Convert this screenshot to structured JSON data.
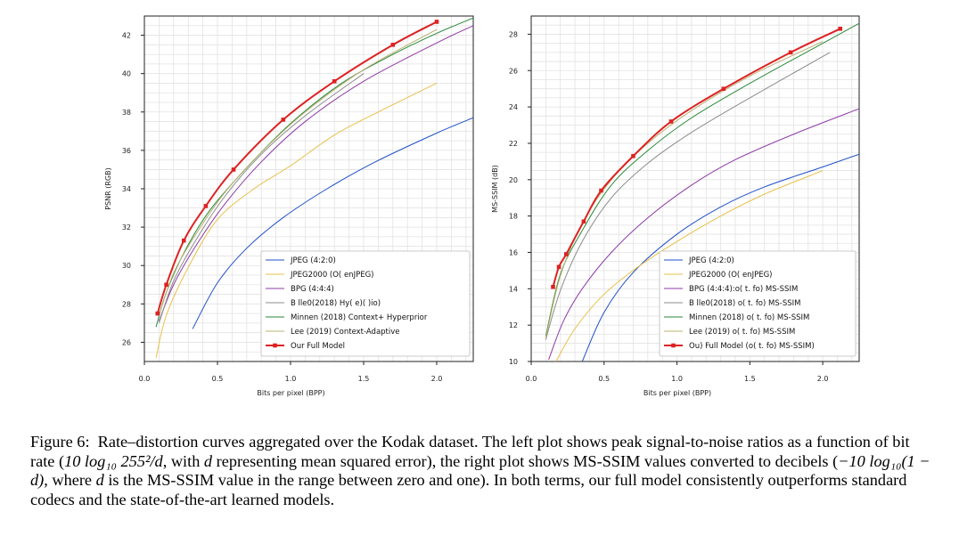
{
  "chart_data": [
    {
      "type": "line",
      "xlabel": "Bits per pixel (BPP)",
      "ylabel": "PSNR (RGB)",
      "xlim": [
        0.0,
        2.25
      ],
      "ylim": [
        25.0,
        43.0
      ],
      "xticks": [
        "0.0",
        "0.5",
        "1.0",
        "1.5",
        "2.0"
      ],
      "yticks": [
        "26",
        "28",
        "30",
        "32",
        "34",
        "36",
        "38",
        "40",
        "42"
      ],
      "grid": true,
      "legend_position": "lower-right",
      "series": [
        {
          "name": "JPEG (4:2:0)",
          "color": "#1f4fc8",
          "marker": false,
          "x": [
            0.33,
            0.5,
            0.7,
            0.95,
            1.25,
            1.58,
            2.0,
            2.25
          ],
          "y": [
            26.7,
            29.1,
            30.9,
            32.5,
            34.0,
            35.4,
            36.9,
            37.7
          ]
        },
        {
          "name": "JPEG2000 (O( enJPEG)",
          "color": "#e8c04a",
          "marker": false,
          "x": [
            0.08,
            0.15,
            0.3,
            0.5,
            0.75,
            1.0,
            1.3,
            1.6,
            2.0
          ],
          "y": [
            25.2,
            27.4,
            29.9,
            32.4,
            34.0,
            35.2,
            36.8,
            38.0,
            39.5
          ]
        },
        {
          "name": "BPG (4:4:4)",
          "color": "#8e3aa8",
          "marker": false,
          "x": [
            0.1,
            0.2,
            0.35,
            0.55,
            0.8,
            1.1,
            1.5,
            2.0,
            2.25
          ],
          "y": [
            27.1,
            29.0,
            31.0,
            33.2,
            35.4,
            37.5,
            39.6,
            41.6,
            42.5
          ]
        },
        {
          "name": "B  lle0(2018) Hy( e)( )io)",
          "color": "#8c8c8c",
          "marker": false,
          "x": [
            0.1,
            0.2,
            0.35,
            0.55,
            0.8,
            1.1,
            1.5
          ],
          "y": [
            27.0,
            29.2,
            31.3,
            33.6,
            35.8,
            37.8,
            40.0
          ]
        },
        {
          "name": "Minnen (2018) Context+ Hyperprior",
          "color": "#2a8a3a",
          "marker": false,
          "x": [
            0.08,
            0.15,
            0.28,
            0.45,
            0.7,
            1.0,
            1.35,
            1.7,
            2.0,
            2.25
          ],
          "y": [
            26.8,
            28.6,
            30.8,
            32.9,
            35.1,
            37.4,
            39.5,
            41.0,
            42.1,
            42.9
          ]
        },
        {
          "name": "Lee (2019) Context-Adaptive",
          "color": "#b8b070",
          "marker": false,
          "x": [
            0.1,
            0.2,
            0.35,
            0.55,
            0.8,
            1.1,
            1.5,
            2.0
          ],
          "y": [
            27.4,
            29.6,
            31.6,
            33.8,
            35.9,
            38.0,
            40.2,
            42.3
          ]
        },
        {
          "name": "Our Full Model",
          "color": "#dd2222",
          "marker": true,
          "x": [
            0.09,
            0.15,
            0.27,
            0.42,
            0.61,
            0.95,
            1.3,
            1.7,
            2.0
          ],
          "y": [
            27.5,
            29.0,
            31.3,
            33.1,
            35.0,
            37.6,
            39.6,
            41.5,
            42.7
          ]
        }
      ]
    },
    {
      "type": "line",
      "xlabel": "Bits per pixel (BPP)",
      "ylabel": "MS-SSIM (dB)",
      "xlim": [
        0.0,
        2.25
      ],
      "ylim": [
        10.0,
        29.0
      ],
      "xticks": [
        "0.0",
        "0.5",
        "1.0",
        "1.5",
        "2.0"
      ],
      "yticks": [
        "10",
        "12",
        "14",
        "16",
        "18",
        "20",
        "22",
        "24",
        "26",
        "28"
      ],
      "grid": true,
      "legend_position": "lower-right",
      "series": [
        {
          "name": "JPEG (4:2:0)",
          "color": "#1f4fc8",
          "marker": false,
          "x": [
            0.35,
            0.5,
            0.7,
            1.0,
            1.3,
            1.6,
            2.0,
            2.25
          ],
          "y": [
            10.0,
            12.7,
            14.9,
            17.0,
            18.5,
            19.6,
            20.7,
            21.4
          ]
        },
        {
          "name": "JPEG2000 (O( enJPEG)",
          "color": "#e8c04a",
          "marker": false,
          "x": [
            0.17,
            0.3,
            0.5,
            0.75,
            1.0,
            1.3,
            1.6,
            2.0
          ],
          "y": [
            10.0,
            11.8,
            13.7,
            15.3,
            16.6,
            18.0,
            19.2,
            20.5
          ]
        },
        {
          "name": "BPG (4:4:4):o( t. fo) MS-SSIM",
          "color": "#8e3aa8",
          "marker": false,
          "x": [
            0.12,
            0.22,
            0.35,
            0.55,
            0.8,
            1.1,
            1.4,
            1.8,
            2.25
          ],
          "y": [
            10.1,
            12.2,
            14.0,
            16.0,
            17.9,
            19.7,
            21.1,
            22.5,
            23.9
          ]
        },
        {
          "name": "B  lle0(2018) o( t. fo) MS-SSIM",
          "color": "#8c8c8c",
          "marker": false,
          "x": [
            0.1,
            0.2,
            0.35,
            0.55,
            0.8,
            1.1,
            1.5,
            2.05
          ],
          "y": [
            11.2,
            13.9,
            16.6,
            19.0,
            20.9,
            22.6,
            24.5,
            27.0
          ]
        },
        {
          "name": "Minnen (2018) o( t. fo) MS-SSIM",
          "color": "#2a8a3a",
          "marker": false,
          "x": [
            0.1,
            0.2,
            0.35,
            0.55,
            0.8,
            1.1,
            1.5,
            2.0,
            2.25
          ],
          "y": [
            11.4,
            14.8,
            17.2,
            19.7,
            21.6,
            23.4,
            25.3,
            27.5,
            28.6
          ]
        },
        {
          "name": "Lee (2019) o( t. fo) MS-SSIM",
          "color": "#b8b070",
          "marker": false,
          "x": [
            0.1,
            0.2,
            0.35,
            0.55,
            0.8,
            1.1,
            1.5,
            2.0
          ],
          "y": [
            11.3,
            14.7,
            17.6,
            20.0,
            22.0,
            23.8,
            25.7,
            27.6
          ]
        },
        {
          "name": "Ou) Full Model (o( t. fo) MS-SSIM)",
          "color": "#dd2222",
          "marker": true,
          "x": [
            0.15,
            0.19,
            0.24,
            0.36,
            0.48,
            0.7,
            0.96,
            1.32,
            1.78,
            2.12
          ],
          "y": [
            14.1,
            15.2,
            15.9,
            17.7,
            19.4,
            21.3,
            23.2,
            25.0,
            27.0,
            28.3
          ]
        }
      ]
    }
  ],
  "caption": {
    "label": "Figure 6:",
    "text_before_formula": "Rate–distortion curves aggregated over the Kodak dataset. The left plot shows peak signal-to-noise ratios as a function of bit rate (",
    "formula1": "10 log₁₀ 255²/d",
    "text_mid1": ", with ",
    "var_d1": "d",
    "text_mid2": " representing mean squared error), the right plot shows MS-SSIM values converted to decibels (",
    "formula2": "−10 log₁₀(1 − d)",
    "text_mid3": ", where ",
    "var_d2": "d",
    "text_end": " is the MS-SSIM value in the range between zero and one). In both terms, our full model consistently outperforms standard codecs and the state-of-the-art learned models."
  }
}
